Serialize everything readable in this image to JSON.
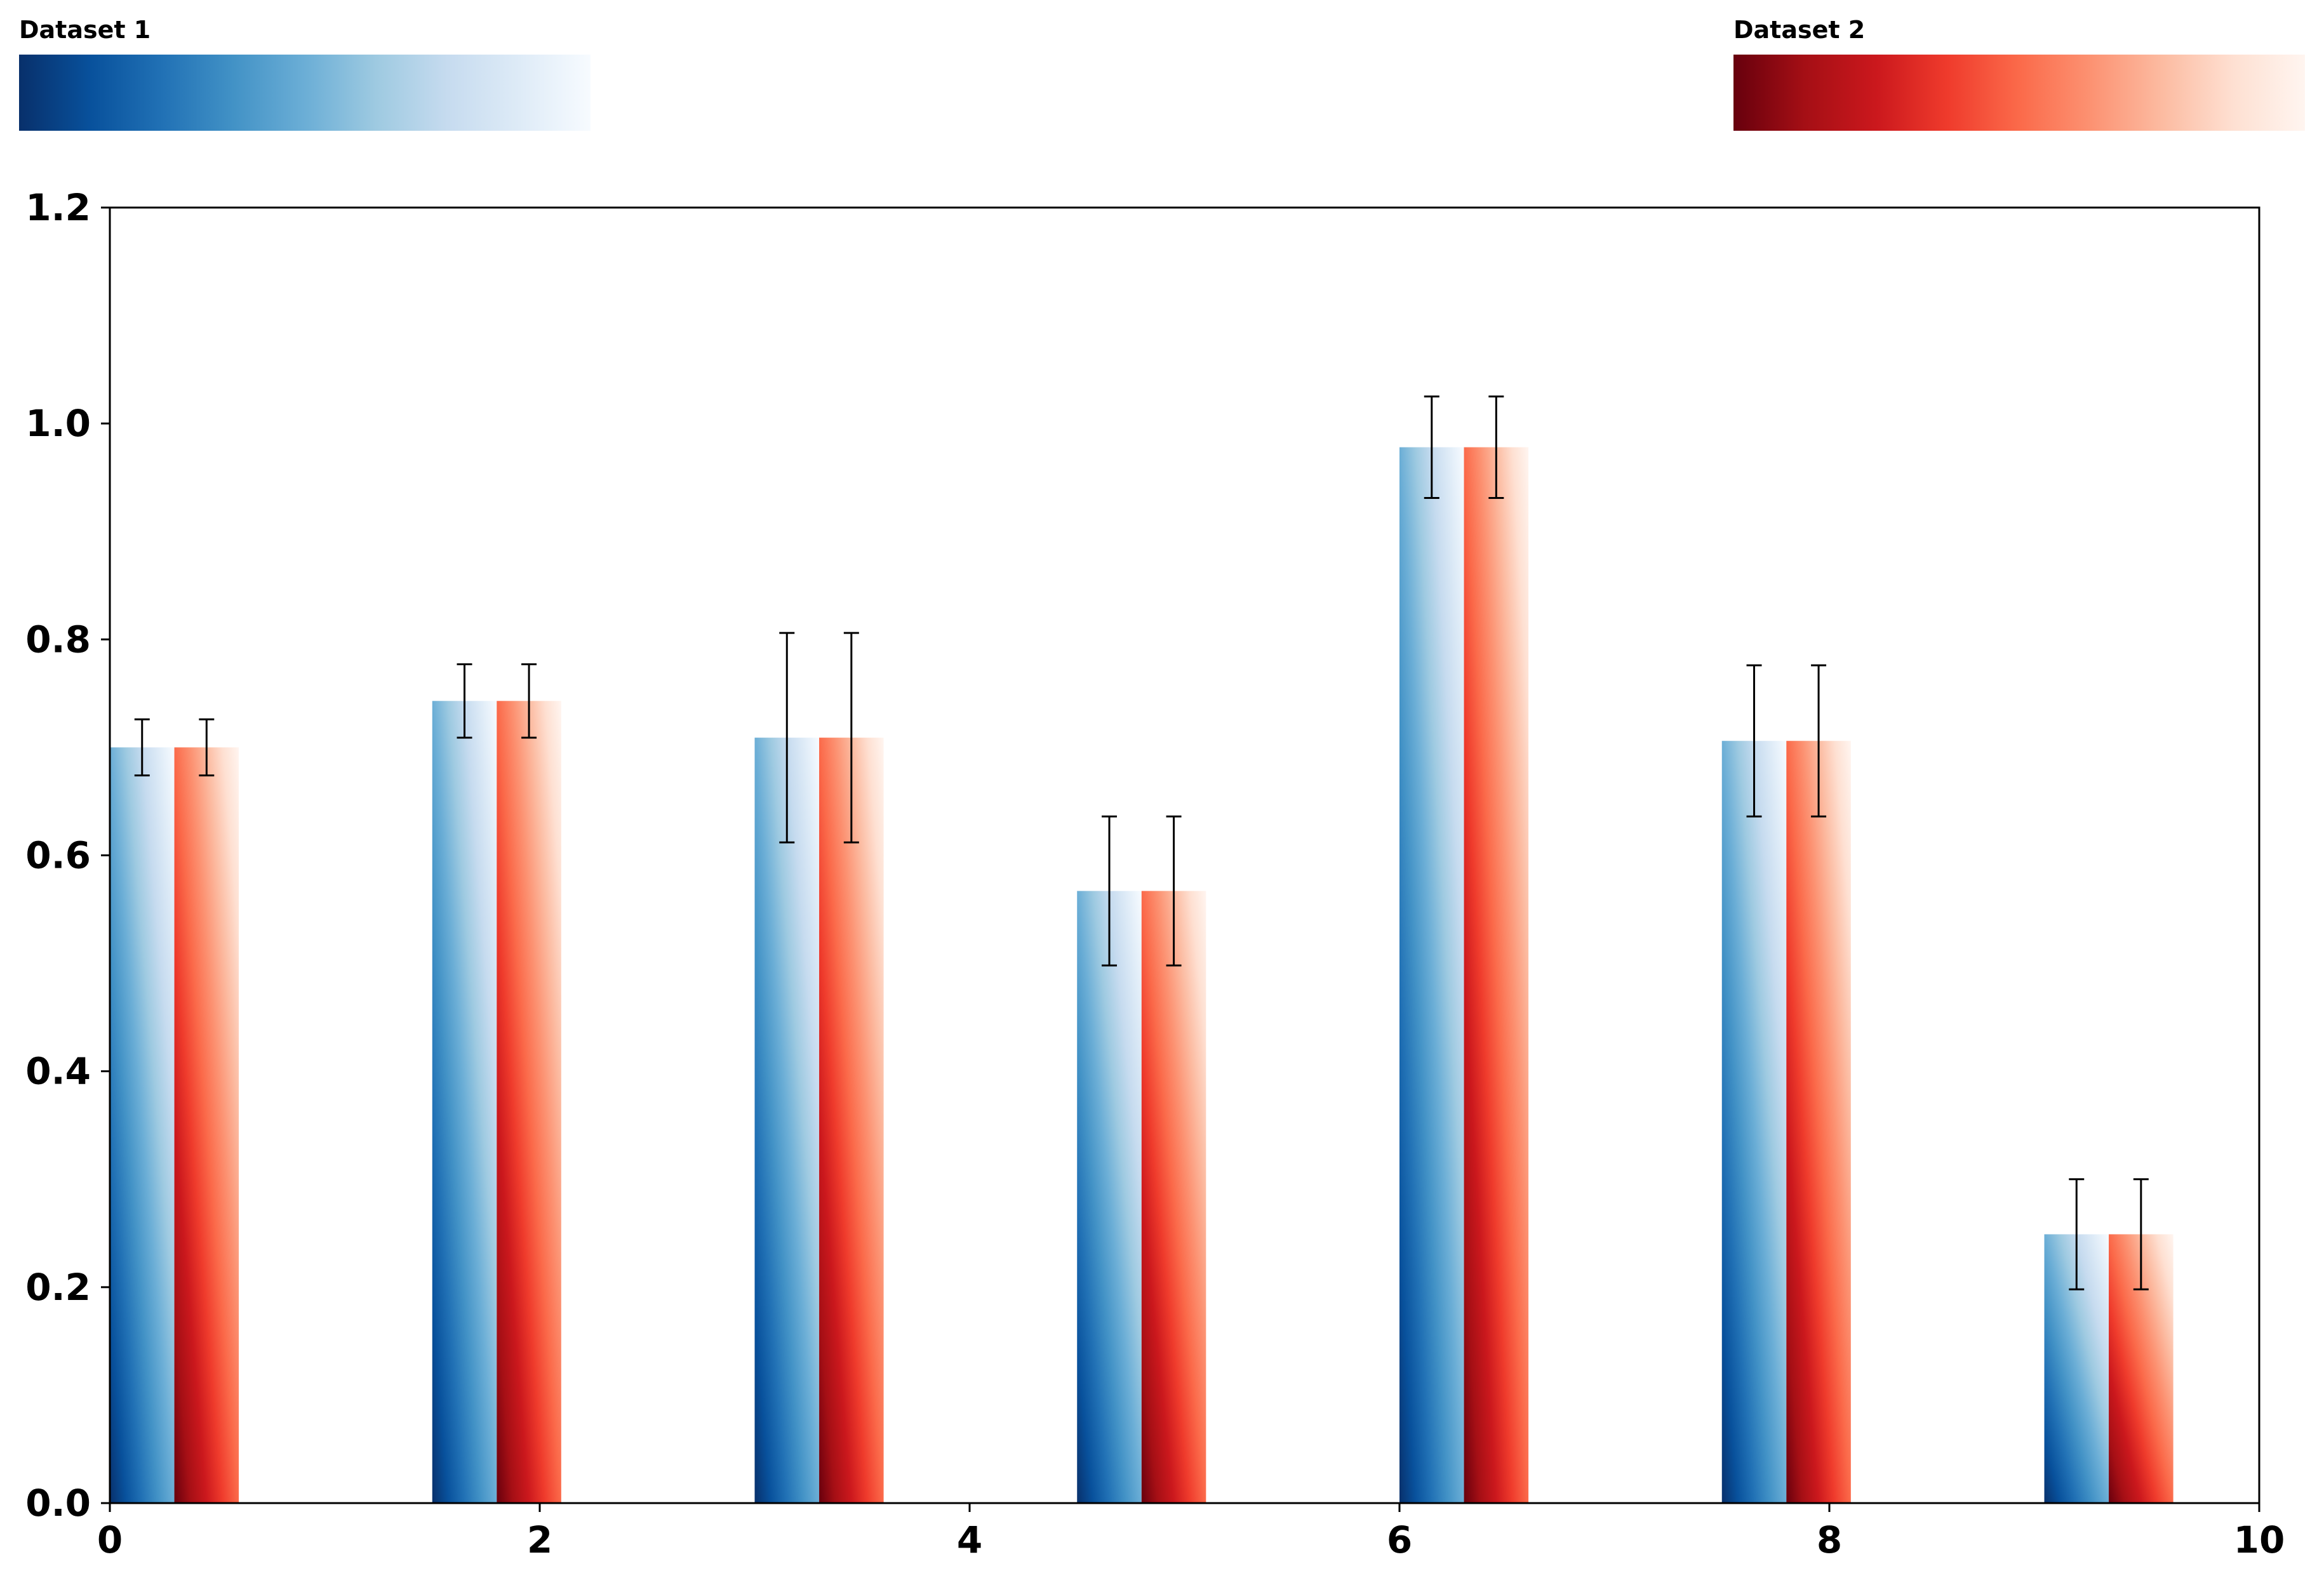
{
  "chart_data": {
    "type": "bar",
    "title": "",
    "xlabel": "",
    "ylabel": "",
    "xlim": [
      0,
      10
    ],
    "ylim": [
      0,
      1.2
    ],
    "grid": false,
    "x_ticks": [
      0,
      2,
      4,
      6,
      8,
      10
    ],
    "y_ticks": [
      0.0,
      0.2,
      0.4,
      0.6,
      0.8,
      1.0,
      1.2
    ],
    "x_tick_labels": [
      "0",
      "2",
      "4",
      "6",
      "8",
      "10"
    ],
    "y_tick_labels": [
      "0.0",
      "0.2",
      "0.4",
      "0.6",
      "0.8",
      "1.0",
      "1.2"
    ],
    "bar_width": 0.3,
    "x": [
      0.0,
      1.5,
      3.0,
      4.5,
      6.0,
      7.5,
      9.0
    ],
    "series": [
      {
        "name": "Dataset 1",
        "offset": 0.0,
        "colormap": [
          "#08306b",
          "#08519c",
          "#2171b5",
          "#4292c6",
          "#6baed6",
          "#9ecae1",
          "#c6dbef",
          "#deebf7",
          "#f7fbff"
        ],
        "values": [
          0.7,
          0.743,
          0.709,
          0.567,
          0.978,
          0.706,
          0.249
        ],
        "errors": [
          0.026,
          0.034,
          0.097,
          0.069,
          0.047,
          0.07,
          0.051
        ]
      },
      {
        "name": "Dataset 2",
        "offset": 0.3,
        "colormap": [
          "#67000d",
          "#a50f15",
          "#cb181d",
          "#ef3b2c",
          "#fb6a4a",
          "#fc9272",
          "#fcbba1",
          "#fee0d2",
          "#fff5f0"
        ],
        "values": [
          0.7,
          0.743,
          0.709,
          0.567,
          0.978,
          0.706,
          0.249
        ],
        "errors": [
          0.026,
          0.034,
          0.097,
          0.069,
          0.047,
          0.07,
          0.051
        ]
      }
    ],
    "colorbars": [
      {
        "label": "Dataset 1",
        "position": "top-left"
      },
      {
        "label": "Dataset 2",
        "position": "top-right"
      }
    ]
  }
}
